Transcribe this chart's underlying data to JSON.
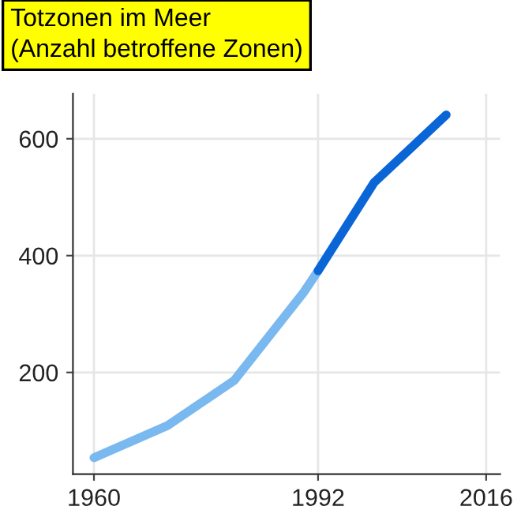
{
  "chart_data": {
    "type": "line",
    "title": "Totzonen im Meer\n(Anzahl betroffene Zonen)",
    "series": [
      {
        "color": "#7ab8f0",
        "x": [
          1960,
          1970.5,
          1980,
          1990,
          1992
        ],
        "values": [
          54,
          109,
          186,
          338,
          374
        ]
      },
      {
        "color": "#0a66d6",
        "x": [
          1992,
          2000,
          2010.3
        ],
        "values": [
          374,
          525,
          641
        ]
      }
    ],
    "xlim": [
      1957,
      2018
    ],
    "ylim": [
      26,
      677
    ],
    "xticks": [
      1960,
      1992,
      2016
    ],
    "yticks": [
      200,
      400,
      600
    ],
    "grid": true,
    "line_style": "solid",
    "marker": "none"
  }
}
